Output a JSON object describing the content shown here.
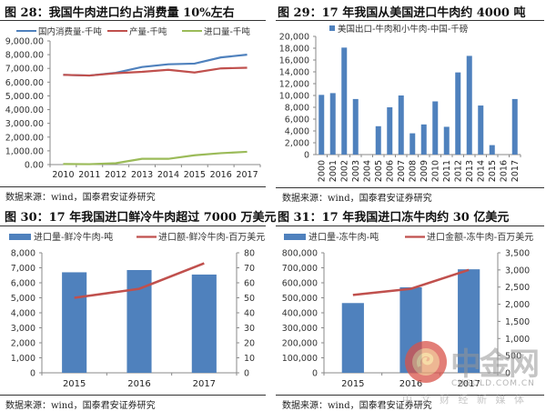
{
  "figures": [
    {
      "title": "图 28：我国牛肉进口约占消费量 10%左右",
      "source": "数据来源：wind，国泰君安证券研究"
    },
    {
      "title": "图 29：17 年我国从美国进口牛肉约 4000 吨",
      "source": "数据来源：wind，国泰君安证券研究"
    },
    {
      "title": "图 30：17 年我国进口鲜冷牛肉超过 7000 万美元",
      "source": "数据来源：wind，国泰君安证券研究"
    },
    {
      "title": "图 31：17 年我国进口冻牛肉约 30 亿美元",
      "source": "数据来源：wind，国泰君安证券研究"
    }
  ],
  "watermark": {
    "brand": "中金网",
    "domain": "CNGOLD.COM.CN",
    "tagline": "中 文 财 经 新 媒 体"
  },
  "colors": {
    "blue": "#4F81BD",
    "red": "#C0504D",
    "green": "#9BBB59",
    "axis": "#888888"
  },
  "chart_data": [
    {
      "type": "line",
      "title": "图 28：我国牛肉进口约占消费量 10%左右",
      "x": [
        "2010",
        "2011",
        "2012",
        "2013",
        "2014",
        "2015",
        "2016",
        "2017"
      ],
      "series": [
        {
          "name": "国内消费量-千吨",
          "color": "#4F81BD",
          "values": [
            6530,
            6480,
            6680,
            7100,
            7300,
            7350,
            7800,
            8000
          ]
        },
        {
          "name": "产量-千吨",
          "color": "#C0504D",
          "values": [
            6530,
            6480,
            6650,
            6750,
            6900,
            6700,
            7000,
            7050
          ]
        },
        {
          "name": "进口量-千吨",
          "color": "#9BBB59",
          "values": [
            40,
            30,
            100,
            420,
            420,
            680,
            830,
            930
          ]
        }
      ],
      "yticks": [
        "0.00",
        "1,000.00",
        "2,000.00",
        "3,000.00",
        "4,000.00",
        "5,000.00",
        "6,000.00",
        "7,000.00",
        "8,000.00",
        "9,000.00"
      ],
      "ylim": [
        0,
        9000
      ],
      "legend_position": "top",
      "grid": false
    },
    {
      "type": "bar",
      "title": "图 29：17 年我国从美国进口牛肉约 4000 吨",
      "categories": [
        "2000",
        "2001",
        "2002",
        "2003",
        "2004",
        "2005",
        "2006",
        "2007",
        "2008",
        "2009",
        "2010",
        "2011",
        "2012",
        "2013",
        "2014",
        "2015",
        "2016",
        "2017"
      ],
      "series": [
        {
          "name": "美国出口-牛肉和小牛肉-中国-千磅",
          "color": "#4F81BD",
          "values": [
            10100,
            10400,
            18100,
            9400,
            0,
            4800,
            8000,
            10000,
            3600,
            5100,
            9000,
            4700,
            13900,
            16700,
            8300,
            1600,
            0,
            9400
          ]
        }
      ],
      "yticks": [
        "0",
        "2,000",
        "4,000",
        "6,000",
        "8,000",
        "10,000",
        "12,000",
        "14,000",
        "16,000",
        "18,000",
        "20,000"
      ],
      "ylim": [
        0,
        20000
      ],
      "legend_position": "top",
      "grid": false
    },
    {
      "type": "bar",
      "title": "图 30：17 年我国进口鲜冷牛肉超过 7000 万美元",
      "categories": [
        "2015",
        "2016",
        "2017"
      ],
      "series": [
        {
          "name": "进口量-鲜冷牛肉-吨",
          "type": "bar",
          "axis": "left",
          "color": "#4F81BD",
          "values": [
            6700,
            6850,
            6550
          ]
        },
        {
          "name": "进口额-鲜冷牛肉-百万美元",
          "type": "line",
          "axis": "right",
          "color": "#C0504D",
          "values": [
            50,
            56,
            73
          ]
        }
      ],
      "yticks_left": [
        "0",
        "1,000",
        "2,000",
        "3,000",
        "4,000",
        "5,000",
        "6,000",
        "7,000",
        "8,000"
      ],
      "yticks_right": [
        "0",
        "10",
        "20",
        "30",
        "40",
        "50",
        "60",
        "70",
        "80"
      ],
      "ylim_left": [
        0,
        8000
      ],
      "ylim_right": [
        0,
        80
      ],
      "legend_position": "top",
      "grid": false
    },
    {
      "type": "bar",
      "title": "图 31：17 年我国进口冻牛肉约 30 亿美元",
      "categories": [
        "2015",
        "2016",
        "2017"
      ],
      "series": [
        {
          "name": "进口量-冻牛肉-吨",
          "type": "bar",
          "axis": "left",
          "color": "#4F81BD",
          "values": [
            465000,
            570000,
            690000
          ]
        },
        {
          "name": "进口金额-冻牛肉-百万美元",
          "type": "line",
          "axis": "right",
          "color": "#C0504D",
          "values": [
            2270,
            2450,
            3000
          ]
        }
      ],
      "yticks_left": [
        "0",
        "100,000",
        "200,000",
        "300,000",
        "400,000",
        "500,000",
        "600,000",
        "700,000",
        "800,000"
      ],
      "yticks_right": [
        "0",
        "500",
        "1,000",
        "1,500",
        "2,000",
        "2,500",
        "3,000",
        "3,500"
      ],
      "ylim_left": [
        0,
        800000
      ],
      "ylim_right": [
        0,
        3500
      ],
      "legend_position": "top",
      "grid": false
    }
  ]
}
